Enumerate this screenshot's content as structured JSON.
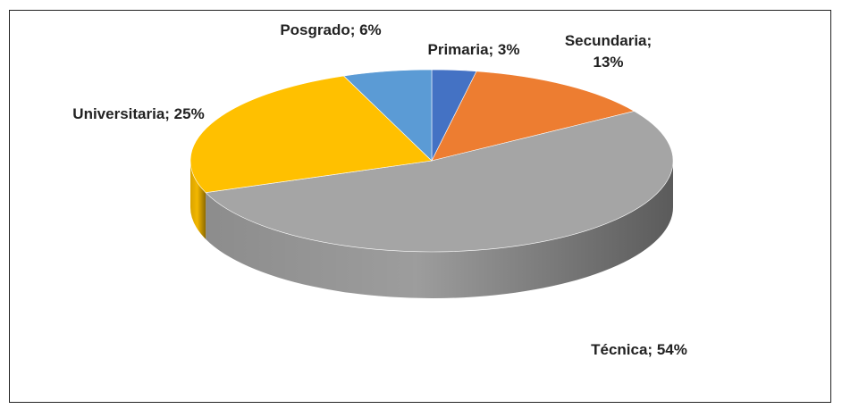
{
  "chart_data": {
    "type": "pie",
    "values": [
      3,
      13,
      54,
      25,
      6
    ],
    "value_labels": [
      "Primaria; 3%",
      "Secundaria; 13%",
      "Técnica; 54%",
      "Universitaria; 25%",
      "Posgrado; 6%"
    ],
    "colors": [
      "#4472c4",
      "#ed7d31",
      "#a5a5a5",
      "#ffc000",
      "#5b9bd5"
    ],
    "style": "3d"
  }
}
